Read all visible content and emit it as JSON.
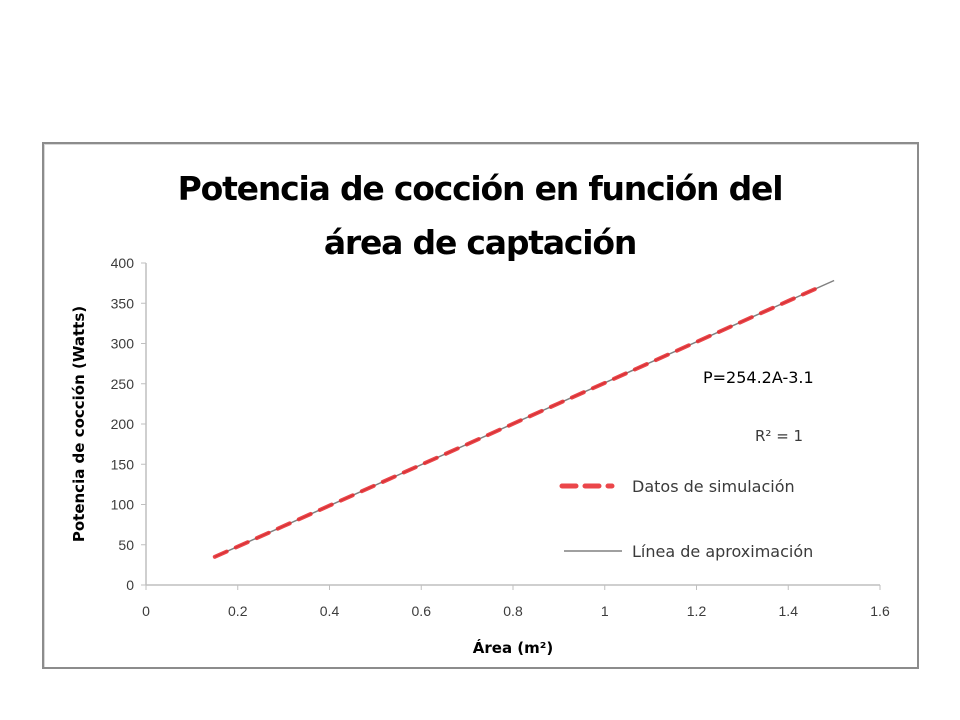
{
  "chart_data": {
    "type": "line",
    "title": "Potencia de cocción en función del área de captación",
    "title_lines": [
      "Potencia de cocción en función del",
      "área de captación"
    ],
    "xlabel": "Área (m²)",
    "ylabel": "Potencia de cocción (Watts)",
    "xlim": [
      0,
      1.6
    ],
    "ylim": [
      0,
      400
    ],
    "x_ticks": [
      "0",
      "0.2",
      "0.4",
      "0.6",
      "0.8",
      "1",
      "1.2",
      "1.4",
      "1.6"
    ],
    "y_ticks": [
      "0",
      "50",
      "100",
      "150",
      "200",
      "250",
      "300",
      "350",
      "400"
    ],
    "grid": false,
    "legend_position": "right",
    "series": [
      {
        "name": "Datos de simulación",
        "style": "dashed",
        "color": "#e8262a",
        "x": [
          0.15,
          0.2,
          0.3,
          0.4,
          0.5,
          0.6,
          0.7,
          0.8,
          0.9,
          1.0,
          1.1,
          1.2,
          1.3,
          1.4,
          1.47
        ],
        "y": [
          35.0,
          47.7,
          73.2,
          98.6,
          124.0,
          149.4,
          174.8,
          200.3,
          225.7,
          251.1,
          276.5,
          302.0,
          327.4,
          352.8,
          370.6
        ]
      },
      {
        "name": "Línea de aproximación",
        "style": "solid",
        "color": "#808080",
        "x": [
          0.15,
          1.5
        ],
        "y": [
          35.0,
          378.2
        ]
      }
    ],
    "annotations": [
      {
        "text": "P=254.2A-3.1",
        "x": 1.4,
        "y": 250
      },
      {
        "text": "R² = 1",
        "x": 1.4,
        "y": 185
      }
    ]
  },
  "chart": {
    "title_line_1": "Potencia de cocción en función del",
    "title_line_2": "área de captación",
    "xlabel": "Área (m²)",
    "ylabel": "Potencia de cocción (Watts)",
    "equation": "P=254.2A-3.1",
    "r_squared": "R² = 1",
    "legend": {
      "series_1": "Datos de simulación",
      "series_2": "Línea de aproximación"
    },
    "colors": {
      "data_series": "#e8262a",
      "fit_line": "#808080",
      "axis": "#bfbfbf",
      "frame": "#8c8c8c"
    }
  }
}
